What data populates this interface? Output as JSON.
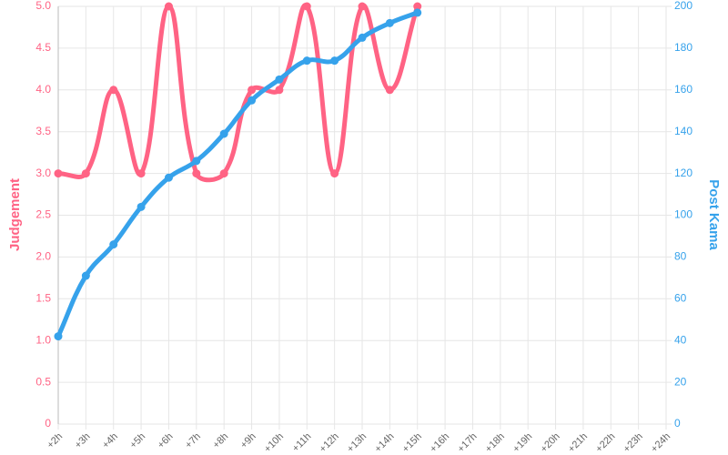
{
  "chart_data": {
    "type": "line",
    "categories": [
      "+2h",
      "+3h",
      "+4h",
      "+5h",
      "+6h",
      "+7h",
      "+8h",
      "+9h",
      "+10h",
      "+11h",
      "+12h",
      "+13h",
      "+14h",
      "+15h",
      "+16h",
      "+17h",
      "+18h",
      "+19h",
      "+20h",
      "+21h",
      "+22h",
      "+23h",
      "+24h"
    ],
    "series": [
      {
        "name": "Judgement",
        "color": "#ff6384",
        "axis": "y",
        "values": [
          3,
          3,
          4,
          3,
          5,
          3,
          3,
          4,
          4,
          5,
          3,
          5,
          4,
          5,
          null,
          null,
          null,
          null,
          null,
          null,
          null,
          null,
          null
        ]
      },
      {
        "name": "Post Kama",
        "color": "#36a2eb",
        "axis": "y2",
        "values": [
          42,
          71,
          86,
          104,
          118,
          126,
          139,
          155,
          165,
          174,
          174,
          185,
          192,
          197,
          null,
          null,
          null,
          null,
          null,
          null,
          null,
          null,
          null
        ]
      }
    ],
    "ylabel": "Judgement",
    "y2label": "Post Kama",
    "ylim": [
      0,
      5
    ],
    "yticks": [
      0,
      0.5,
      {
        "value": 1,
        "label": "1.0"
      },
      1.5,
      {
        "value": 2,
        "label": "2.0"
      },
      2.5,
      {
        "value": 3,
        "label": "3.0"
      },
      3.5,
      {
        "value": 4,
        "label": "4.0"
      },
      4.5,
      {
        "value": 5,
        "label": "5.0"
      }
    ],
    "y2lim": [
      0,
      200
    ],
    "y2ticks": [
      0,
      20,
      40,
      60,
      80,
      100,
      120,
      140,
      160,
      180,
      200
    ],
    "grid": true
  }
}
